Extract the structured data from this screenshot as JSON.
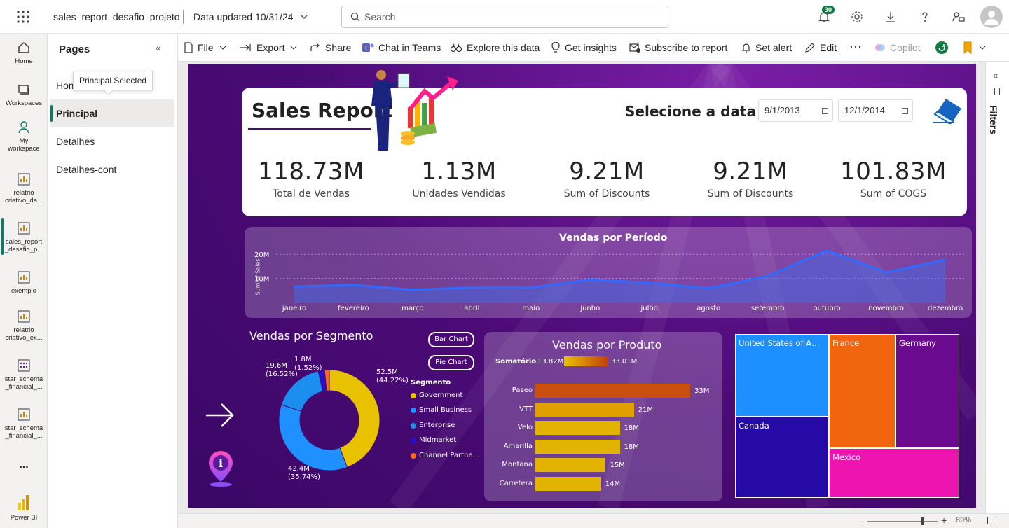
{
  "topbar": {
    "report_name": "sales_report_desafio_projeto",
    "data_updated": "Data updated 10/31/24",
    "search_placeholder": "Search",
    "notification_count": "30"
  },
  "leftnav": {
    "items": [
      {
        "label": "Home"
      },
      {
        "label": "Workspaces"
      },
      {
        "label": "My workspace"
      },
      {
        "label": "relatrio criativo_da..."
      },
      {
        "label": "sales_report _desafio_p..."
      },
      {
        "label": "exemplo"
      },
      {
        "label": "relatrio criativo_ex..."
      },
      {
        "label": "star_schema _financial_..."
      },
      {
        "label": "star_schema _financial_..."
      }
    ],
    "more": "...",
    "brand": "Power BI"
  },
  "pages": {
    "title": "Pages",
    "items": [
      "Home",
      "Principal",
      "Detalhes",
      "Detalhes-cont"
    ],
    "tooltip": "Principal Selected"
  },
  "commands": {
    "file": "File",
    "export": "Export",
    "share": "Share",
    "chat": "Chat in Teams",
    "explore": "Explore this data",
    "insights": "Get insights",
    "subscribe": "Subscribe to report",
    "alert": "Set alert",
    "edit": "Edit",
    "more": "···",
    "copilot": "Copilot"
  },
  "filters": {
    "label": "Filters"
  },
  "zoom": {
    "label": "89%",
    "value": 89
  },
  "report": {
    "title": "Sales Report",
    "date_label": "Selecione a data",
    "start_date": "9/1/2013",
    "end_date": "12/1/2014",
    "kpis": [
      {
        "value": "118.73M",
        "label": "Total de Vendas"
      },
      {
        "value": "1.13M",
        "label": "Unidades Vendidas"
      },
      {
        "value": "9.21M",
        "label": "Sum of Discounts"
      },
      {
        "value": "9.21M",
        "label": "Sum of Discounts"
      },
      {
        "value": "101.83M",
        "label": "Sum of COGS"
      }
    ],
    "line_title": "Vendas por Período",
    "line_ylabel": "Sum of Sales",
    "segment_title": "Vendas por Segmento",
    "bar_chart_btn": "Bar Chart",
    "pie_chart_btn": "Pie Chart",
    "legend_title": "Segmento",
    "product_title": "Vendas por Produto",
    "somatorio_label": "Somatório",
    "somatorio_min": "13.82M",
    "somatorio_max": "33.01M"
  },
  "colors": {
    "canvas": "#4b0a76",
    "accent": "#117865",
    "government": "#e8c200",
    "small_business": "#1e90ff",
    "enterprise": "#1c8ef0",
    "midmarket": "#2a0ecc",
    "channel_partners": "#ff6a13"
  },
  "chart_data": [
    {
      "type": "area",
      "title": "Vendas por Período",
      "ylabel": "Sum of Sales",
      "x": [
        "janeiro",
        "fevereiro",
        "março",
        "abril",
        "maio",
        "junho",
        "julho",
        "agosto",
        "setembro",
        "outubro",
        "novembro",
        "dezembro"
      ],
      "y_ticks": [
        "10M",
        "20M"
      ],
      "series": [
        {
          "values": [
            6.6,
            7.3,
            5.3,
            6.2,
            6.2,
            9.5,
            8.2,
            5.9,
            11.0,
            21.6,
            12.5,
            17.7
          ]
        }
      ],
      "ylim": [
        0,
        25
      ],
      "grid": true
    },
    {
      "type": "pie",
      "title": "Vendas por Segmento",
      "legend_title": "Segmento",
      "categories": [
        "Government",
        "Small Business",
        "Enterprise",
        "Midmarket",
        "Channel Partne..."
      ],
      "values": [
        52.5,
        42.4,
        19.6,
        2.4,
        1.8
      ],
      "labels": [
        {
          "value": "52.5M",
          "pct": "(44.22%)"
        },
        {
          "value": "42.4M",
          "pct": "(35.74%)"
        },
        {
          "value": "19.6M",
          "pct": "(16.52%)"
        },
        {
          "value": "1.8M",
          "pct": "(1.52%)"
        }
      ]
    },
    {
      "type": "bar",
      "title": "Vendas por Produto",
      "categories": [
        "Paseo",
        "VTT",
        "Velo",
        "Amarilla",
        "Montana",
        "Carretera"
      ],
      "values": [
        33,
        21,
        18,
        18,
        15,
        14
      ],
      "value_labels": [
        "33M",
        "21M",
        "18M",
        "18M",
        "15M",
        "14M"
      ]
    },
    {
      "type": "treemap",
      "categories": [
        "United States of Amer...",
        "France",
        "Germany",
        "Canada",
        "Mexico"
      ],
      "values": [
        25.0,
        24.4,
        23.5,
        24.9,
        20.9
      ]
    }
  ]
}
